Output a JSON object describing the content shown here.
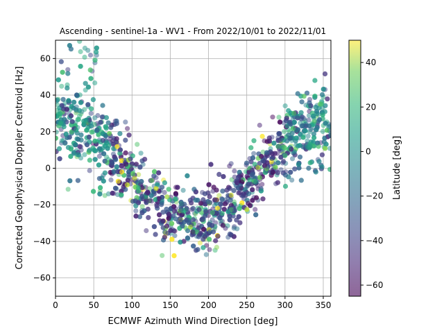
{
  "chart_data": {
    "type": "scatter",
    "title": "Ascending - sentinel-1a - WV1 - From 2022/10/01 to 2022/11/01",
    "xlabel": "ECMWF Azimuth Wind Direction [deg]",
    "ylabel": "Corrected Geophysical Doppler Centroid [Hz]",
    "xlim": [
      0,
      360
    ],
    "ylim": [
      -70,
      70
    ],
    "xticks": [
      "0",
      "50",
      "100",
      "150",
      "200",
      "250",
      "300",
      "350"
    ],
    "yticks": [
      "−60",
      "−40",
      "−20",
      "0",
      "20",
      "40",
      "60"
    ],
    "grid": true,
    "point_alpha": 0.5,
    "colorbar": {
      "label": "Latitude [deg]",
      "colormap": "viridis",
      "range": [
        -65,
        50
      ],
      "ticks": [
        "−60",
        "−40",
        "−20",
        "0",
        "20",
        "40"
      ]
    },
    "trend": {
      "description": "V-shaped cloud: approx. +25 Hz near 0 deg, minimum about -28 Hz near 190 deg, back to +25 Hz near 360 deg",
      "x": [
        0,
        30,
        60,
        90,
        120,
        150,
        180,
        200,
        230,
        260,
        290,
        320,
        350,
        360
      ],
      "y": [
        25,
        22,
        14,
        0,
        -15,
        -25,
        -28,
        -27,
        -20,
        -5,
        10,
        20,
        25,
        25
      ]
    }
  }
}
